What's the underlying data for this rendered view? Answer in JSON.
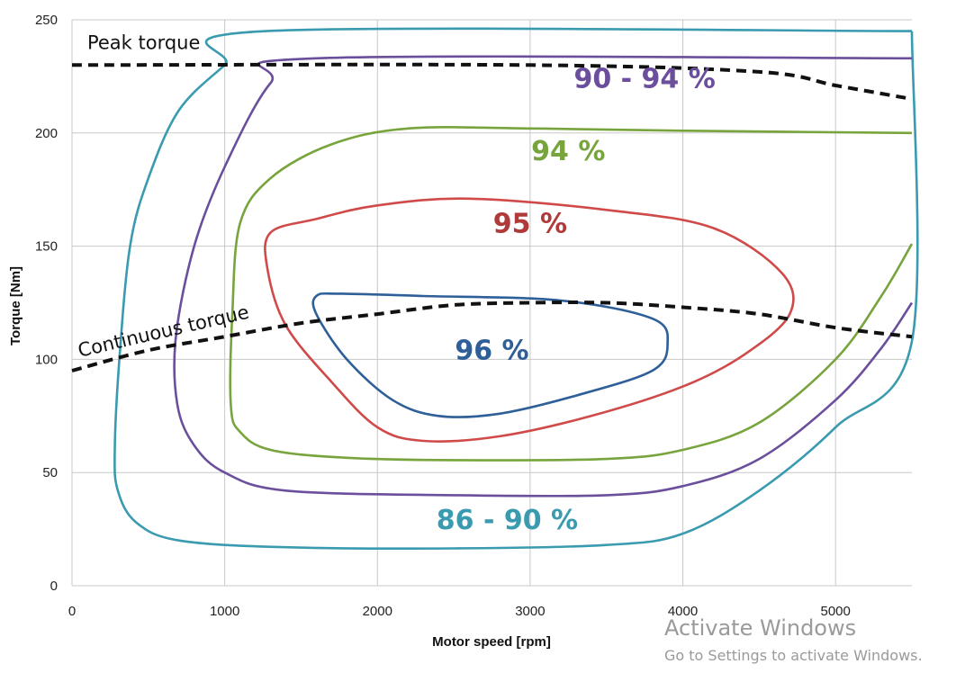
{
  "chart_data": {
    "type": "line",
    "xlabel": "Motor speed [rpm]",
    "ylabel": "Torque [Nm]",
    "xlim": [
      0,
      5500
    ],
    "ylim": [
      0,
      250
    ],
    "x_ticks": [
      0,
      1000,
      2000,
      3000,
      4000,
      5000
    ],
    "y_ticks": [
      0,
      50,
      100,
      150,
      200,
      250
    ],
    "grid": true,
    "series": [
      {
        "name": "86 - 90 %",
        "color": "#3a9bb0",
        "closed": false,
        "points": [
          [
            5500,
            245
          ],
          [
            1270,
            245
          ],
          [
            1000,
            230
          ],
          [
            700,
            210
          ],
          [
            500,
            180
          ],
          [
            380,
            150
          ],
          [
            310,
            100
          ],
          [
            280,
            60
          ],
          [
            300,
            42
          ],
          [
            420,
            28
          ],
          [
            700,
            20
          ],
          [
            1400,
            17
          ],
          [
            2500,
            16.5
          ],
          [
            3500,
            18
          ],
          [
            4000,
            23
          ],
          [
            4500,
            42
          ],
          [
            5000,
            70
          ],
          [
            5500,
            108
          ],
          [
            5500,
            245
          ]
        ]
      },
      {
        "name": "90 - 94 %",
        "color": "#6b4f9c",
        "closed": false,
        "points": [
          [
            5500,
            233
          ],
          [
            1600,
            233
          ],
          [
            1300,
            222
          ],
          [
            1000,
            185
          ],
          [
            800,
            150
          ],
          [
            680,
            110
          ],
          [
            690,
            80
          ],
          [
            800,
            62
          ],
          [
            1000,
            50
          ],
          [
            1400,
            42
          ],
          [
            2500,
            40
          ],
          [
            3500,
            40
          ],
          [
            4000,
            44
          ],
          [
            4500,
            56
          ],
          [
            5000,
            82
          ],
          [
            5300,
            105
          ],
          [
            5500,
            125
          ]
        ]
      },
      {
        "name": "94 %",
        "color": "#77a43d",
        "closed": false,
        "points": [
          [
            5500,
            200
          ],
          [
            4000,
            201
          ],
          [
            3000,
            202
          ],
          [
            2200,
            202
          ],
          [
            1700,
            195
          ],
          [
            1300,
            180
          ],
          [
            1100,
            160
          ],
          [
            1050,
            120
          ],
          [
            1040,
            80
          ],
          [
            1100,
            68
          ],
          [
            1300,
            60
          ],
          [
            1800,
            56.5
          ],
          [
            2500,
            55.5
          ],
          [
            3500,
            56
          ],
          [
            4000,
            60
          ],
          [
            4500,
            72
          ],
          [
            5000,
            100
          ],
          [
            5300,
            128
          ],
          [
            5500,
            151
          ]
        ]
      },
      {
        "name": "95 %",
        "color": "#d04a4a",
        "closed": true,
        "points": [
          [
            2600,
            171
          ],
          [
            2000,
            168
          ],
          [
            1600,
            162
          ],
          [
            1300,
            156
          ],
          [
            1280,
            140
          ],
          [
            1400,
            115
          ],
          [
            1700,
            90
          ],
          [
            2000,
            70
          ],
          [
            2300,
            64
          ],
          [
            2800,
            66
          ],
          [
            3400,
            75
          ],
          [
            4000,
            88
          ],
          [
            4400,
            102
          ],
          [
            4700,
            120
          ],
          [
            4650,
            138
          ],
          [
            4200,
            158
          ],
          [
            3500,
            166
          ]
        ]
      },
      {
        "name": "96 %",
        "color": "#2e5f98",
        "closed": true,
        "points": [
          [
            1600,
            128
          ],
          [
            1600,
            120
          ],
          [
            1800,
            100
          ],
          [
            2100,
            82
          ],
          [
            2400,
            75
          ],
          [
            2800,
            76
          ],
          [
            3300,
            84
          ],
          [
            3800,
            95
          ],
          [
            3900,
            107
          ],
          [
            3800,
            118
          ],
          [
            3200,
            126
          ],
          [
            2300,
            128
          ],
          [
            1750,
            129
          ]
        ]
      },
      {
        "name": "Peak torque",
        "color": "#111111",
        "dashed": true,
        "closed": false,
        "points": [
          [
            0,
            230
          ],
          [
            3000,
            230
          ],
          [
            4500,
            227
          ],
          [
            5000,
            221
          ],
          [
            5500,
            215
          ]
        ]
      },
      {
        "name": "Continuous torque",
        "color": "#111111",
        "dashed": true,
        "closed": false,
        "points": [
          [
            0,
            95
          ],
          [
            500,
            104
          ],
          [
            1000,
            110
          ],
          [
            1500,
            116
          ],
          [
            2000,
            120
          ],
          [
            2500,
            124
          ],
          [
            3000,
            125
          ],
          [
            3500,
            125
          ],
          [
            4000,
            123
          ],
          [
            4500,
            120
          ],
          [
            5000,
            114
          ],
          [
            5500,
            110
          ]
        ]
      }
    ],
    "annotations": [
      {
        "text": "90 - 94 %",
        "x": 3750,
        "y": 220,
        "color": "#6b4f9c"
      },
      {
        "text": "94 %",
        "x": 3250,
        "y": 188,
        "color": "#77a43d"
      },
      {
        "text": "95 %",
        "x": 3000,
        "y": 156,
        "color": "#b03a3a"
      },
      {
        "text": "96 %",
        "x": 2750,
        "y": 100,
        "color": "#2e5f98"
      },
      {
        "text": "86 - 90 %",
        "x": 2850,
        "y": 25,
        "color": "#3a9bb0"
      },
      {
        "text": "Peak torque",
        "x": 100,
        "y": 237,
        "color": "#111111"
      },
      {
        "text": "Continuous torque",
        "x": 50,
        "y": 101,
        "color": "#111111",
        "rotate": -13
      }
    ]
  },
  "watermark": {
    "title": "Activate Windows",
    "subtitle": "Go to Settings to activate Windows."
  }
}
